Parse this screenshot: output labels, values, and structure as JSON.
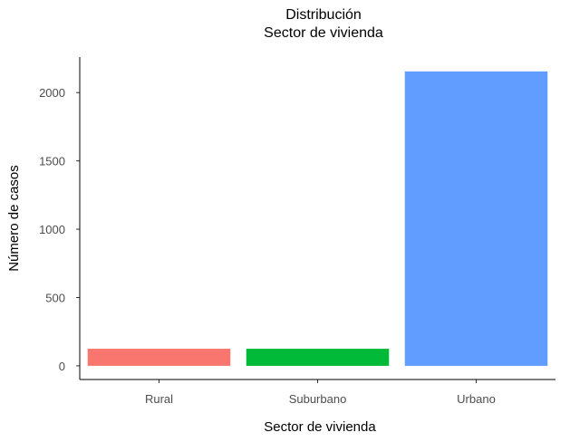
{
  "chart_data": {
    "type": "bar",
    "title": "Distribución",
    "subtitle": "Sector de vivienda",
    "xlabel": "Sector de vivienda",
    "ylabel": "Número de casos",
    "categories": [
      "Rural",
      "Suburbano",
      "Urbano"
    ],
    "values": [
      125,
      125,
      2155
    ],
    "colors": [
      "#F8766D",
      "#00BA38",
      "#619CFF"
    ],
    "ylim": [
      -100,
      2260
    ],
    "yticks": [
      0,
      500,
      1000,
      1500,
      2000
    ],
    "ytick_labels": [
      "0",
      "500",
      "1000",
      "1500",
      "2000"
    ],
    "grid": false,
    "legend": "none"
  }
}
